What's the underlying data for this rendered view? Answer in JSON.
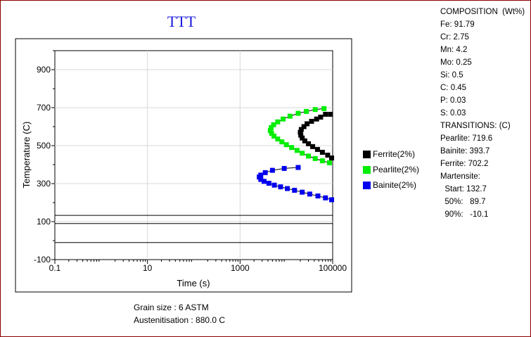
{
  "chart_data": {
    "type": "scatter",
    "title": "TTT",
    "xlabel": "Time (s)",
    "ylabel": "Temperature (C)",
    "xscale": "log",
    "xlim": [
      0.1,
      100000
    ],
    "ylim": [
      -100,
      1000
    ],
    "xticks": [
      "0.1",
      "10",
      "1000",
      "100000"
    ],
    "yticks": [
      "-100",
      "100",
      "300",
      "500",
      "700",
      "900"
    ],
    "grid": true,
    "legend_position": "right",
    "series": [
      {
        "name": "Ferrite(2%)",
        "color": "#000000",
        "marker": "square",
        "points": [
          [
            90000,
            665
          ],
          [
            70000,
            665
          ],
          [
            55000,
            650
          ],
          [
            45000,
            640
          ],
          [
            35000,
            628
          ],
          [
            28000,
            615
          ],
          [
            24000,
            600
          ],
          [
            21000,
            585
          ],
          [
            20000,
            570
          ],
          [
            20500,
            555
          ],
          [
            22000,
            540
          ],
          [
            25000,
            525
          ],
          [
            30000,
            510
          ],
          [
            37000,
            495
          ],
          [
            47000,
            480
          ],
          [
            60000,
            465
          ],
          [
            78000,
            450
          ],
          [
            95000,
            435
          ]
        ]
      },
      {
        "name": "Pearlite(2%)",
        "color": "#00ee00",
        "marker": "square",
        "points": [
          [
            65000,
            695
          ],
          [
            42000,
            690
          ],
          [
            27000,
            680
          ],
          [
            18000,
            670
          ],
          [
            12000,
            655
          ],
          [
            8500,
            640
          ],
          [
            6500,
            625
          ],
          [
            5300,
            610
          ],
          [
            4700,
            595
          ],
          [
            4500,
            580
          ],
          [
            4800,
            565
          ],
          [
            5400,
            550
          ],
          [
            6500,
            535
          ],
          [
            8000,
            520
          ],
          [
            10000,
            505
          ],
          [
            13000,
            490
          ],
          [
            17000,
            475
          ],
          [
            22000,
            460
          ],
          [
            30000,
            445
          ],
          [
            42000,
            432
          ],
          [
            60000,
            420
          ],
          [
            85000,
            410
          ]
        ]
      },
      {
        "name": "Bainite(2%)",
        "color": "#0000ee",
        "marker": "square",
        "points": [
          [
            18000,
            385
          ],
          [
            9000,
            380
          ],
          [
            5000,
            370
          ],
          [
            3500,
            358
          ],
          [
            2800,
            345
          ],
          [
            2600,
            335
          ],
          [
            2800,
            322
          ],
          [
            3300,
            312
          ],
          [
            4200,
            302
          ],
          [
            5500,
            292
          ],
          [
            7500,
            283
          ],
          [
            10500,
            274
          ],
          [
            15000,
            265
          ],
          [
            22000,
            255
          ],
          [
            32000,
            245
          ],
          [
            48000,
            235
          ],
          [
            70000,
            225
          ],
          [
            95000,
            215
          ]
        ]
      }
    ],
    "horizontal_lines": [
      {
        "label": "Martensite start",
        "y": 132.7
      },
      {
        "label": "Martensite 50%",
        "y": 89.7
      },
      {
        "label": "Martensite 90%",
        "y": -10.1
      }
    ]
  },
  "info": {
    "composition_title": "COMPOSITION  (Wt%)",
    "composition": [
      "Fe: 91.79",
      "Cr: 2.75",
      "Mn: 4.2",
      "Mo: 0.25",
      "Si: 0.5",
      "C: 0.45",
      "P: 0.03",
      "S: 0.03"
    ],
    "transitions_title": "TRANSITIONS: (C)",
    "transitions": [
      "Pearlite: 719.6",
      "Bainite: 393.7",
      "Ferrite: 702.2"
    ],
    "martensite_title": "Martensite:",
    "martensite": [
      "  Start: 132.7",
      "  50%:   89.7",
      "  90%:   -10.1"
    ]
  },
  "footer": {
    "grain_size": "Grain size : 6 ASTM",
    "austenitisation": "Austenitisation : 880.0 C"
  }
}
